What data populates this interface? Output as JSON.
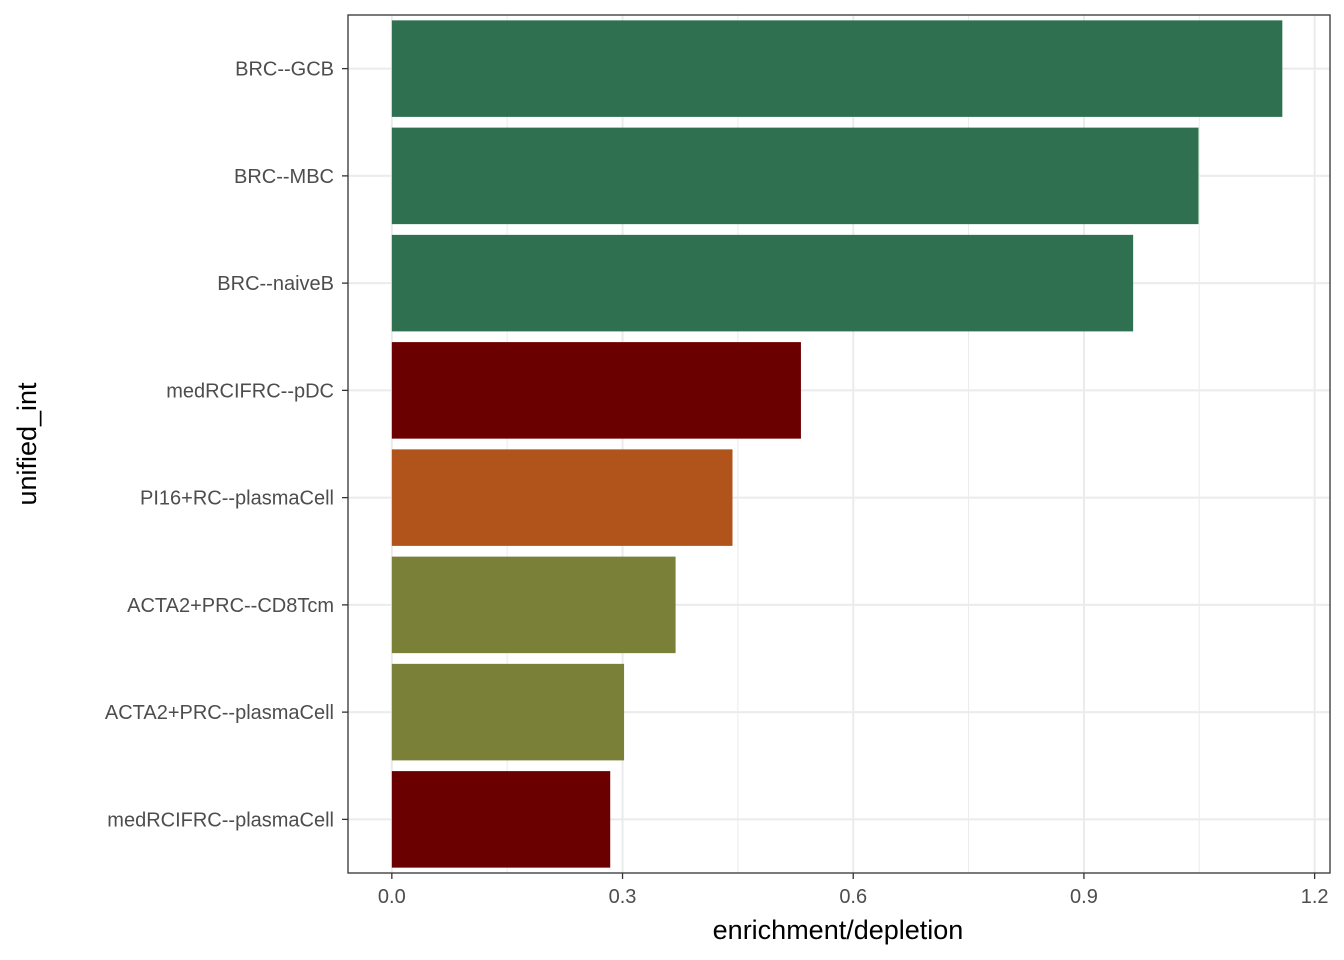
{
  "chart_data": {
    "type": "bar",
    "orientation": "horizontal",
    "xlabel": "enrichment/depletion",
    "ylabel": "unified_int",
    "xlim": [
      -0.057,
      1.22
    ],
    "x_ticks": [
      "0.0",
      "0.3",
      "0.6",
      "0.9",
      "1.2"
    ],
    "x_tick_values": [
      0.0,
      0.3,
      0.6,
      0.9,
      1.2
    ],
    "grid": true,
    "categories": [
      "BRC--GCB",
      "BRC--MBC",
      "BRC--naiveB",
      "medRCIFRC--pDC",
      "PI16+RC--plasmaCell",
      "ACTA2+PRC--CD8Tcm",
      "ACTA2+PRC--plasmaCell",
      "medRCIFRC--plasmaCell"
    ],
    "values": [
      1.158,
      1.049,
      0.964,
      0.532,
      0.443,
      0.369,
      0.302,
      0.284
    ],
    "colors": [
      "#2f7050",
      "#2f7050",
      "#2f7050",
      "#6b0000",
      "#b0541c",
      "#7a8038",
      "#7a8038",
      "#6b0000"
    ]
  }
}
